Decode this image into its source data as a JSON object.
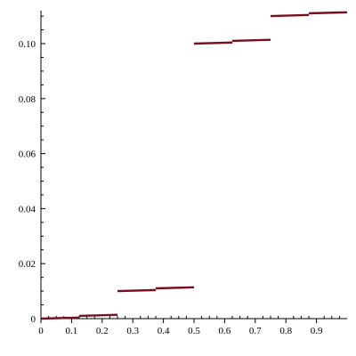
{
  "chart_data": {
    "type": "line",
    "style": "step",
    "title": "",
    "xlabel": "",
    "ylabel": "",
    "xlim": [
      0,
      1
    ],
    "ylim": [
      0,
      0.111
    ],
    "grid": false,
    "legend": "none",
    "line_color": "#7a0f1c",
    "x_ticks": [
      "0",
      "0.1",
      "0.2",
      "0.3",
      "0.4",
      "0.5",
      "0.6",
      "0.7",
      "0.8",
      "0.9"
    ],
    "y_ticks": [
      "0",
      "0.02",
      "0.04",
      "0.06",
      "0.08",
      "0.10"
    ],
    "segments": [
      {
        "x0": 0.0,
        "x1": 0.125,
        "y0": 0.0,
        "y1": 0.0004
      },
      {
        "x0": 0.125,
        "x1": 0.25,
        "y0": 0.001,
        "y1": 0.0014
      },
      {
        "x0": 0.25,
        "x1": 0.375,
        "y0": 0.01,
        "y1": 0.0104
      },
      {
        "x0": 0.375,
        "x1": 0.5,
        "y0": 0.011,
        "y1": 0.0114
      },
      {
        "x0": 0.5,
        "x1": 0.625,
        "y0": 0.1,
        "y1": 0.1004
      },
      {
        "x0": 0.625,
        "x1": 0.75,
        "y0": 0.101,
        "y1": 0.1014
      },
      {
        "x0": 0.75,
        "x1": 0.875,
        "y0": 0.11,
        "y1": 0.1104
      },
      {
        "x0": 0.875,
        "x1": 1.0,
        "y0": 0.111,
        "y1": 0.1114
      }
    ]
  }
}
